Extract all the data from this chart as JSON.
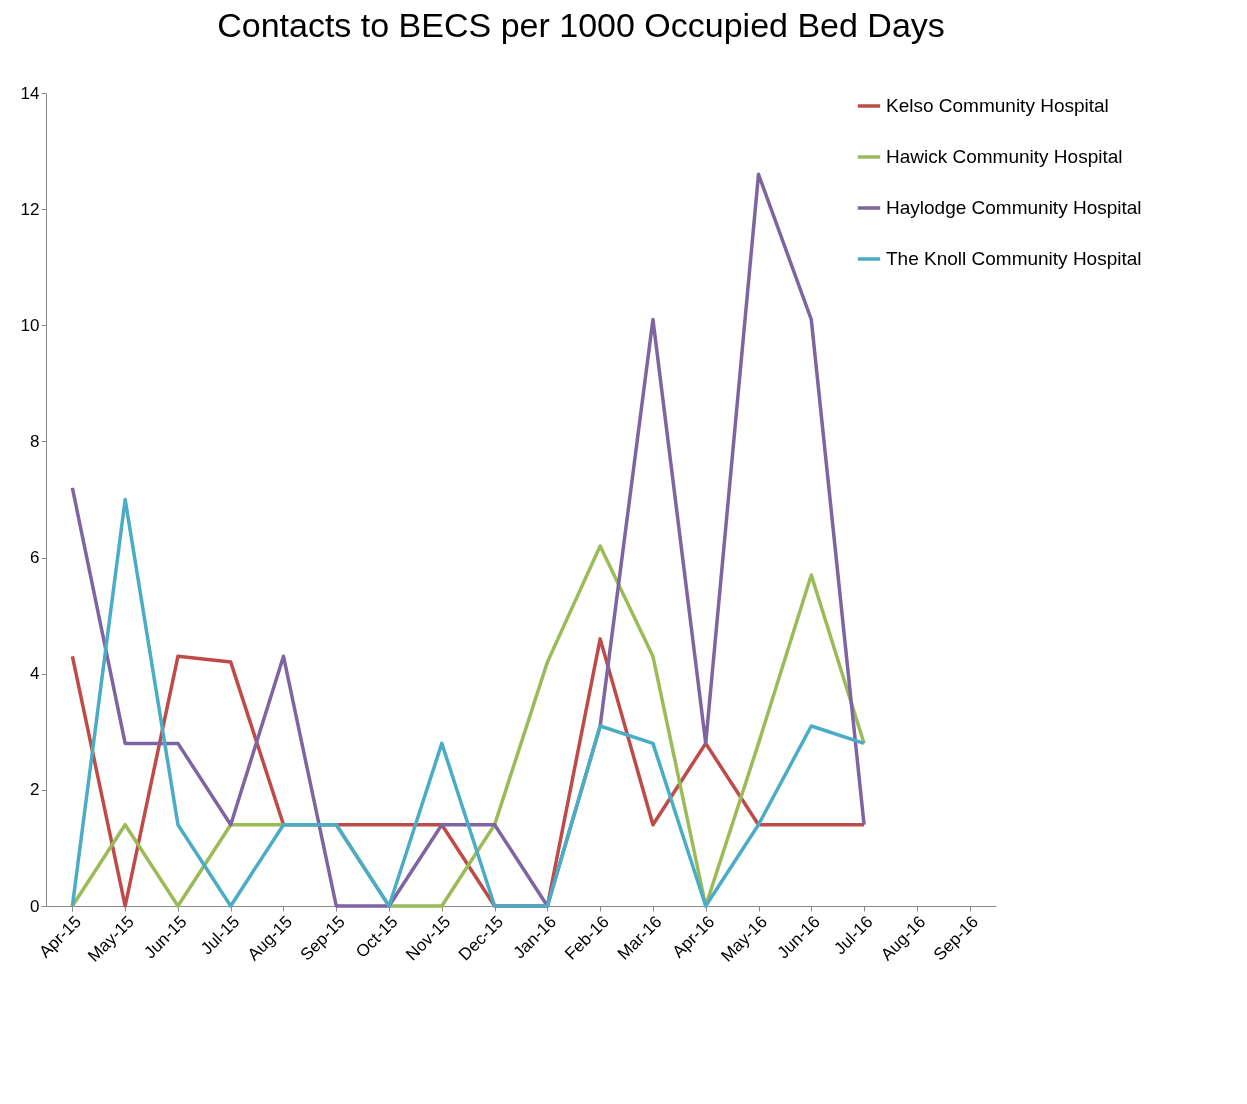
{
  "chart_data": {
    "type": "line",
    "title": "Contacts to BECS per 1000 Occupied Bed Days",
    "categories": [
      "Apr-15",
      "May-15",
      "Jun-15",
      "Jul-15",
      "Aug-15",
      "Sep-15",
      "Oct-15",
      "Nov-15",
      "Dec-15",
      "Jan-16",
      "Feb-16",
      "Mar-16",
      "Apr-16",
      "May-16",
      "Jun-16",
      "Jul-16",
      "Aug-16",
      "Sep-16"
    ],
    "series": [
      {
        "name": "Kelso Community Hospital",
        "color": "#be4b48",
        "values": [
          4.3,
          0,
          4.3,
          4.2,
          1.4,
          1.4,
          1.4,
          1.4,
          0,
          0,
          4.6,
          1.4,
          2.8,
          1.4,
          1.4,
          1.4,
          null,
          null
        ]
      },
      {
        "name": "Hawick Community Hospital",
        "color": "#9bbb59",
        "values": [
          0,
          1.4,
          0,
          1.4,
          1.4,
          1.4,
          0,
          0,
          1.4,
          4.2,
          6.2,
          4.3,
          0,
          2.8,
          5.7,
          2.8,
          null,
          null
        ]
      },
      {
        "name": "Haylodge Community Hospital",
        "color": "#7f64a2",
        "values": [
          7.2,
          2.8,
          2.8,
          1.4,
          4.3,
          0,
          0,
          1.4,
          1.4,
          0,
          3.1,
          10.1,
          2.8,
          12.6,
          10.1,
          1.4,
          null,
          null
        ]
      },
      {
        "name": "The Knoll Community Hospital",
        "color": "#4bacc6",
        "values": [
          0,
          7,
          1.4,
          0,
          1.4,
          1.4,
          0,
          2.8,
          0,
          0,
          3.1,
          2.8,
          0,
          1.4,
          3.1,
          2.8,
          null,
          null
        ]
      }
    ],
    "ylim": [
      0,
      14
    ],
    "yticks": [
      0,
      2,
      4,
      6,
      8,
      10,
      12,
      14
    ],
    "grid": false,
    "legend": "right",
    "marker": "none",
    "line_style": "solid"
  }
}
